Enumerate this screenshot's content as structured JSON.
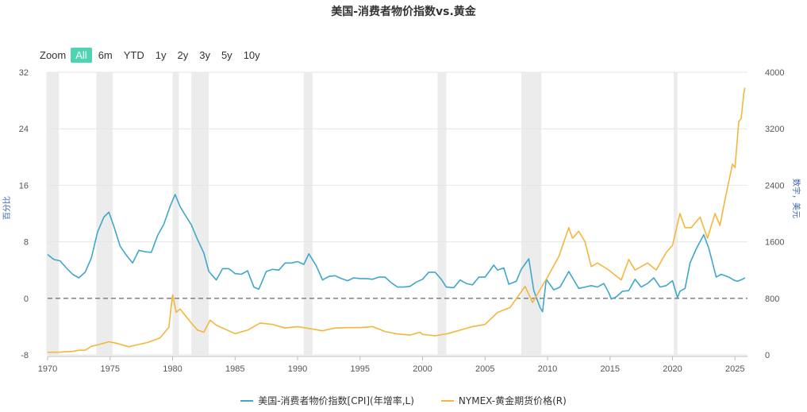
{
  "title": "美国-消费者物价指数vs.黄金",
  "zoom": {
    "label": "Zoom",
    "buttons": [
      "All",
      "6m",
      "YTD",
      "1y",
      "2y",
      "3y",
      "5y",
      "10y"
    ],
    "active": "All"
  },
  "chart_data": {
    "type": "line",
    "title": "美国-消费者物价指数vs.黄金",
    "x_ticks": [
      "1970",
      "1975",
      "1980",
      "1985",
      "1990",
      "1995",
      "2000",
      "2005",
      "2010",
      "2015",
      "2020",
      "2025"
    ],
    "xlim": [
      1970,
      2026
    ],
    "left_axis": {
      "label": "百分比",
      "ticks": [
        -8,
        0,
        8,
        16,
        24,
        32
      ],
      "range": [
        -8,
        32
      ]
    },
    "right_axis": {
      "label": "数字，美元",
      "ticks": [
        0,
        800,
        1600,
        2400,
        3200,
        4000
      ],
      "range": [
        0,
        4000
      ]
    },
    "zero_line": "dashed",
    "shaded_periods": [
      [
        1969.9,
        1970.9
      ],
      [
        1973.9,
        1975.2
      ],
      [
        1980.0,
        1980.5
      ],
      [
        1981.5,
        1982.9
      ],
      [
        1990.5,
        1991.2
      ],
      [
        2001.2,
        2001.9
      ],
      [
        2007.9,
        2009.5
      ],
      [
        2020.1,
        2020.4
      ]
    ],
    "legend_position": "bottom",
    "series": [
      {
        "name": "美国-消费者物价指数[CPI](年增率,L)",
        "axis": "left",
        "color": "#3fa7c9",
        "points": [
          [
            1970,
            6.2
          ],
          [
            1970.5,
            5.5
          ],
          [
            1971,
            5.3
          ],
          [
            1971.5,
            4.3
          ],
          [
            1972,
            3.4
          ],
          [
            1972.5,
            2.9
          ],
          [
            1973,
            3.7
          ],
          [
            1973.5,
            5.7
          ],
          [
            1974,
            9.4
          ],
          [
            1974.5,
            11.5
          ],
          [
            1974.9,
            12.2
          ],
          [
            1975.3,
            10.2
          ],
          [
            1975.8,
            7.4
          ],
          [
            1976.3,
            6.1
          ],
          [
            1976.8,
            5.0
          ],
          [
            1977.3,
            6.8
          ],
          [
            1977.8,
            6.6
          ],
          [
            1978.3,
            6.5
          ],
          [
            1978.8,
            8.9
          ],
          [
            1979.3,
            10.5
          ],
          [
            1979.8,
            13.0
          ],
          [
            1980.2,
            14.7
          ],
          [
            1980.6,
            13.0
          ],
          [
            1981.0,
            11.8
          ],
          [
            1981.5,
            10.4
          ],
          [
            1982.0,
            8.3
          ],
          [
            1982.5,
            6.4
          ],
          [
            1982.9,
            3.8
          ],
          [
            1983.5,
            2.6
          ],
          [
            1984,
            4.2
          ],
          [
            1984.5,
            4.2
          ],
          [
            1985,
            3.5
          ],
          [
            1985.5,
            3.4
          ],
          [
            1986,
            3.9
          ],
          [
            1986.5,
            1.6
          ],
          [
            1986.9,
            1.3
          ],
          [
            1987.5,
            3.8
          ],
          [
            1988,
            4.1
          ],
          [
            1988.5,
            4.0
          ],
          [
            1989,
            5.0
          ],
          [
            1989.5,
            5.0
          ],
          [
            1990,
            5.2
          ],
          [
            1990.5,
            4.8
          ],
          [
            1990.9,
            6.3
          ],
          [
            1991.5,
            4.6
          ],
          [
            1992,
            2.6
          ],
          [
            1992.5,
            3.1
          ],
          [
            1993,
            3.2
          ],
          [
            1993.5,
            2.8
          ],
          [
            1994,
            2.5
          ],
          [
            1994.5,
            2.9
          ],
          [
            1995,
            2.8
          ],
          [
            1995.5,
            2.8
          ],
          [
            1996,
            2.7
          ],
          [
            1996.5,
            3.0
          ],
          [
            1997,
            3.0
          ],
          [
            1997.5,
            2.2
          ],
          [
            1998,
            1.6
          ],
          [
            1998.5,
            1.6
          ],
          [
            1999,
            1.7
          ],
          [
            1999.5,
            2.3
          ],
          [
            2000,
            2.7
          ],
          [
            2000.5,
            3.7
          ],
          [
            2001,
            3.7
          ],
          [
            2001.5,
            2.7
          ],
          [
            2001.9,
            1.6
          ],
          [
            2002.5,
            1.5
          ],
          [
            2003,
            2.6
          ],
          [
            2003.5,
            2.1
          ],
          [
            2004,
            1.9
          ],
          [
            2004.5,
            3.0
          ],
          [
            2005,
            3.0
          ],
          [
            2005.7,
            4.7
          ],
          [
            2006,
            4.0
          ],
          [
            2006.5,
            4.3
          ],
          [
            2006.9,
            2.0
          ],
          [
            2007.5,
            2.4
          ],
          [
            2007.9,
            4.1
          ],
          [
            2008.5,
            5.6
          ],
          [
            2008.9,
            1.1
          ],
          [
            2009.4,
            -1.3
          ],
          [
            2009.6,
            -1.9
          ],
          [
            2009.9,
            2.7
          ],
          [
            2010.5,
            1.2
          ],
          [
            2011,
            1.6
          ],
          [
            2011.7,
            3.8
          ],
          [
            2012,
            2.9
          ],
          [
            2012.5,
            1.4
          ],
          [
            2013,
            1.6
          ],
          [
            2013.5,
            1.8
          ],
          [
            2014,
            1.6
          ],
          [
            2014.5,
            2.1
          ],
          [
            2014.9,
            0.8
          ],
          [
            2015.1,
            -0.1
          ],
          [
            2015.5,
            0.2
          ],
          [
            2016,
            1.0
          ],
          [
            2016.5,
            1.1
          ],
          [
            2017,
            2.7
          ],
          [
            2017.5,
            1.6
          ],
          [
            2018,
            2.1
          ],
          [
            2018.5,
            2.9
          ],
          [
            2019,
            1.6
          ],
          [
            2019.5,
            1.8
          ],
          [
            2020,
            2.5
          ],
          [
            2020.4,
            0.1
          ],
          [
            2020.6,
            1.0
          ],
          [
            2021,
            1.4
          ],
          [
            2021.4,
            5.0
          ],
          [
            2021.9,
            7.0
          ],
          [
            2022.5,
            9.0
          ],
          [
            2022.9,
            7.1
          ],
          [
            2023.5,
            3.0
          ],
          [
            2023.9,
            3.4
          ],
          [
            2024.5,
            3.0
          ],
          [
            2024.9,
            2.6
          ],
          [
            2025.2,
            2.4
          ],
          [
            2025.6,
            2.7
          ],
          [
            2025.8,
            2.9
          ]
        ]
      },
      {
        "name": "NYMEX-黄金期货价格(R)",
        "axis": "right",
        "color": "#f4b63c",
        "points": [
          [
            1970,
            36
          ],
          [
            1971,
            38
          ],
          [
            1972,
            48
          ],
          [
            1972.5,
            65
          ],
          [
            1973,
            65
          ],
          [
            1973.5,
            120
          ],
          [
            1974,
            140
          ],
          [
            1974.9,
            185
          ],
          [
            1975.5,
            165
          ],
          [
            1976.5,
            115
          ],
          [
            1977,
            135
          ],
          [
            1978,
            175
          ],
          [
            1979,
            240
          ],
          [
            1979.7,
            390
          ],
          [
            1980.0,
            850
          ],
          [
            1980.3,
            600
          ],
          [
            1980.6,
            650
          ],
          [
            1981,
            560
          ],
          [
            1981.5,
            450
          ],
          [
            1982.0,
            350
          ],
          [
            1982.5,
            320
          ],
          [
            1983,
            490
          ],
          [
            1983.5,
            420
          ],
          [
            1984,
            380
          ],
          [
            1985,
            300
          ],
          [
            1986,
            350
          ],
          [
            1987,
            450
          ],
          [
            1988,
            430
          ],
          [
            1989,
            380
          ],
          [
            1990,
            400
          ],
          [
            1991,
            370
          ],
          [
            1992,
            340
          ],
          [
            1993,
            380
          ],
          [
            1994,
            385
          ],
          [
            1995,
            385
          ],
          [
            1996,
            400
          ],
          [
            1997,
            330
          ],
          [
            1998,
            295
          ],
          [
            1999,
            280
          ],
          [
            1999.8,
            320
          ],
          [
            2000,
            290
          ],
          [
            2001,
            270
          ],
          [
            2002,
            300
          ],
          [
            2003,
            350
          ],
          [
            2004,
            400
          ],
          [
            2005,
            430
          ],
          [
            2006,
            600
          ],
          [
            2007,
            670
          ],
          [
            2008.2,
            970
          ],
          [
            2008.8,
            740
          ],
          [
            2009.5,
            950
          ],
          [
            2010,
            1100
          ],
          [
            2010.9,
            1390
          ],
          [
            2011.7,
            1800
          ],
          [
            2012,
            1650
          ],
          [
            2012.5,
            1750
          ],
          [
            2013,
            1600
          ],
          [
            2013.5,
            1250
          ],
          [
            2014,
            1300
          ],
          [
            2014.9,
            1200
          ],
          [
            2015.9,
            1060
          ],
          [
            2016.5,
            1350
          ],
          [
            2017,
            1200
          ],
          [
            2018,
            1300
          ],
          [
            2018.7,
            1200
          ],
          [
            2019.5,
            1450
          ],
          [
            2020,
            1550
          ],
          [
            2020.6,
            2000
          ],
          [
            2021,
            1800
          ],
          [
            2021.5,
            1800
          ],
          [
            2022.2,
            1950
          ],
          [
            2022.8,
            1650
          ],
          [
            2023.4,
            2000
          ],
          [
            2023.8,
            1830
          ],
          [
            2024.2,
            2200
          ],
          [
            2024.8,
            2700
          ],
          [
            2025.0,
            2650
          ],
          [
            2025.3,
            3300
          ],
          [
            2025.5,
            3350
          ],
          [
            2025.7,
            3700
          ],
          [
            2025.8,
            3780
          ]
        ]
      }
    ]
  },
  "legend": {
    "cpi": "美国-消费者物价指数[CPI](年增率,L)",
    "gold": "NYMEX-黄金期货价格(R)"
  }
}
